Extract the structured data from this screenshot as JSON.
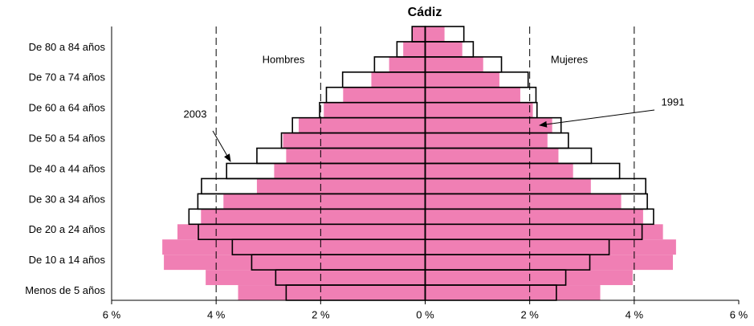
{
  "chart_data": {
    "type": "pyramid",
    "title": "Cádiz",
    "categories": [
      "Menos de 5 años",
      null,
      "De 10 a 14 años",
      null,
      "De 20 a 24 años",
      null,
      "De 30 a 34 años",
      null,
      "De 40 a 44 años",
      null,
      "De 50 a 54 años",
      null,
      "De 60 a 64 años",
      null,
      "De 70 a 74 años",
      null,
      "De 80 a 84 años",
      null
    ],
    "left_label": "Hombres",
    "right_label": "Mujeres",
    "series": [
      {
        "name": "2003",
        "color": "#f07fb4",
        "men": [
          3.58,
          4.2,
          5.0,
          5.03,
          4.74,
          4.29,
          3.86,
          3.22,
          2.89,
          2.66,
          2.72,
          2.42,
          1.94,
          1.57,
          1.03,
          0.69,
          0.42,
          0.26
        ],
        "women": [
          3.35,
          3.97,
          4.74,
          4.8,
          4.55,
          4.17,
          3.75,
          3.17,
          2.83,
          2.55,
          2.34,
          2.43,
          2.06,
          1.82,
          1.42,
          1.11,
          0.71,
          0.37
        ]
      },
      {
        "name": "1991",
        "color": "#000000",
        "men": [
          2.66,
          2.86,
          3.32,
          3.69,
          4.34,
          4.52,
          4.35,
          4.28,
          3.8,
          3.22,
          2.75,
          2.54,
          2.02,
          1.89,
          1.58,
          0.97,
          0.54,
          0.25
        ],
        "women": [
          2.51,
          2.69,
          3.15,
          3.52,
          4.15,
          4.37,
          4.25,
          4.22,
          3.72,
          3.18,
          2.74,
          2.6,
          2.14,
          2.12,
          1.97,
          1.46,
          0.92,
          0.74
        ]
      }
    ],
    "xlim": [
      -6,
      6
    ],
    "xticks": [
      {
        "value": -6,
        "label": "6 %"
      },
      {
        "value": -4,
        "label": "4 %"
      },
      {
        "value": -2,
        "label": "2 %"
      },
      {
        "value": 0,
        "label": "0 %"
      },
      {
        "value": 2,
        "label": "2 %"
      },
      {
        "value": 4,
        "label": "4 %"
      },
      {
        "value": 6,
        "label": "6 %"
      }
    ],
    "grid": true
  }
}
